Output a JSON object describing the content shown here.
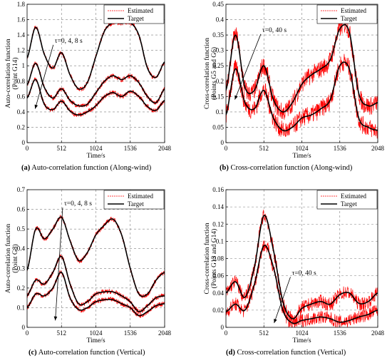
{
  "chart_data": [
    {
      "type": "line",
      "panel": "a",
      "caption": {
        "label": "(a)",
        "text": "Auto-correlation function (Along-wind)"
      },
      "xlabel": "Time/s",
      "ylabel": "Auto-correlation function",
      "ylabel2": "(Point G14)",
      "xlim": [
        0,
        2048
      ],
      "ylim": [
        0,
        1.8
      ],
      "xticks": [
        0,
        512,
        1024,
        1536,
        2048
      ],
      "yticks": [
        0,
        0.2,
        0.4,
        0.6,
        0.8,
        1.0,
        1.2,
        1.4,
        1.6,
        1.8
      ],
      "ytick_labels": [
        "0",
        "0.2",
        "0.4",
        "0.6",
        "0.8",
        "1",
        "1.2",
        "1.4",
        "1.6",
        "1.8"
      ],
      "grid": "dashed",
      "legend": {
        "position": "top-right",
        "entries": [
          "Estimated",
          "Target"
        ]
      },
      "annotation": {
        "text": "τ=0, 4, 8 s",
        "at": [
          390,
          1.3
        ],
        "arrow_to": [
          120,
          0.44
        ]
      },
      "noise": 0.03,
      "series": [
        {
          "name": "τ=0 s",
          "x": [
            0,
            128,
            256,
            384,
            512,
            640,
            768,
            896,
            1024,
            1152,
            1280,
            1408,
            1536,
            1664,
            1792,
            1920,
            2048
          ],
          "y": [
            1.1,
            1.5,
            1.15,
            0.97,
            1.17,
            0.88,
            0.7,
            0.78,
            1.12,
            1.45,
            1.56,
            1.55,
            1.56,
            1.4,
            0.97,
            0.85,
            1.05
          ]
        },
        {
          "name": "τ=4 s",
          "x": [
            0,
            128,
            256,
            384,
            512,
            640,
            768,
            896,
            1024,
            1152,
            1280,
            1408,
            1536,
            1664,
            1792,
            1920,
            2048
          ],
          "y": [
            0.75,
            1.03,
            0.72,
            0.58,
            0.7,
            0.55,
            0.48,
            0.5,
            0.65,
            0.8,
            0.87,
            0.82,
            0.87,
            0.78,
            0.6,
            0.52,
            0.7
          ]
        },
        {
          "name": "τ=8 s",
          "x": [
            0,
            128,
            256,
            384,
            512,
            640,
            768,
            896,
            1024,
            1152,
            1280,
            1408,
            1536,
            1664,
            1792,
            1920,
            2048
          ],
          "y": [
            0.58,
            0.82,
            0.5,
            0.43,
            0.54,
            0.41,
            0.36,
            0.4,
            0.48,
            0.6,
            0.65,
            0.6,
            0.67,
            0.6,
            0.47,
            0.42,
            0.55
          ]
        }
      ]
    },
    {
      "type": "line",
      "panel": "b",
      "caption": {
        "label": "(b)",
        "text": "Cross-correlation function (Along-wind)"
      },
      "xlabel": "Time/s",
      "ylabel": "Cross-correlation function",
      "ylabel2": "(Points G5 and G6)",
      "xlim": [
        0,
        2048
      ],
      "ylim": [
        0,
        0.45
      ],
      "xticks": [
        0,
        512,
        1024,
        1536,
        2048
      ],
      "yticks": [
        0,
        0.05,
        0.1,
        0.15,
        0.2,
        0.25,
        0.3,
        0.35,
        0.4,
        0.45
      ],
      "ytick_labels": [
        "0",
        "0.05",
        "0.1",
        "0.15",
        "0.2",
        "0.25",
        "0.3",
        "0.35",
        "0.4",
        "0.45"
      ],
      "grid": "dashed",
      "legend": {
        "position": "top-right",
        "entries": [
          "Estimated",
          "Target"
        ]
      },
      "annotation": {
        "text": "τ=0, 40 s",
        "at": [
          470,
          0.36
        ],
        "arrow_to": [
          120,
          0.14
        ]
      },
      "noise": 0.03,
      "series": [
        {
          "name": "τ=0 s",
          "x": [
            0,
            128,
            256,
            384,
            512,
            640,
            768,
            896,
            1024,
            1152,
            1280,
            1408,
            1536,
            1664,
            1792,
            1920,
            2048
          ],
          "y": [
            0.17,
            0.35,
            0.18,
            0.17,
            0.25,
            0.14,
            0.1,
            0.13,
            0.19,
            0.22,
            0.24,
            0.27,
            0.37,
            0.36,
            0.16,
            0.12,
            0.13
          ]
        },
        {
          "name": "τ=40 s",
          "x": [
            0,
            128,
            256,
            384,
            512,
            640,
            768,
            896,
            1024,
            1152,
            1280,
            1408,
            1536,
            1664,
            1792,
            1920,
            2048
          ],
          "y": [
            0.09,
            0.24,
            0.13,
            0.11,
            0.17,
            0.08,
            0.04,
            0.05,
            0.08,
            0.09,
            0.11,
            0.14,
            0.25,
            0.24,
            0.08,
            0.05,
            0.04
          ]
        }
      ]
    },
    {
      "type": "line",
      "panel": "c",
      "caption": {
        "label": "(c)",
        "text": "Auto-correlation function (Vertical)"
      },
      "xlabel": "Time/s",
      "ylabel": "Auto-correlation function",
      "ylabel2": "(Point G8)",
      "xlim": [
        0,
        2048
      ],
      "ylim": [
        0,
        0.7
      ],
      "xticks": [
        0,
        512,
        1024,
        1536,
        2048
      ],
      "yticks": [
        0,
        0.1,
        0.2,
        0.3,
        0.4,
        0.5,
        0.6,
        0.7
      ],
      "ytick_labels": [
        "0",
        "0.1",
        "0.2",
        "0.3",
        "0.4",
        "0.5",
        "0.6",
        "0.7"
      ],
      "grid": "dashed",
      "legend": {
        "position": "top-right",
        "entries": [
          "Estimated",
          "Target"
        ]
      },
      "annotation": {
        "text": "τ=0, 4, 8 s",
        "at": [
          530,
          0.62
        ],
        "arrow_to": [
          420,
          0.035
        ]
      },
      "noise": 0.012,
      "series": [
        {
          "name": "τ=0 s",
          "x": [
            0,
            128,
            256,
            384,
            512,
            640,
            768,
            896,
            1024,
            1152,
            1280,
            1408,
            1536,
            1664,
            1792,
            1920,
            2048
          ],
          "y": [
            0.29,
            0.5,
            0.45,
            0.5,
            0.56,
            0.44,
            0.34,
            0.38,
            0.47,
            0.52,
            0.55,
            0.47,
            0.3,
            0.17,
            0.17,
            0.24,
            0.28
          ]
        },
        {
          "name": "τ=4 s",
          "x": [
            0,
            128,
            256,
            384,
            512,
            640,
            768,
            896,
            1024,
            1152,
            1280,
            1408,
            1536,
            1664,
            1792,
            1920,
            2048
          ],
          "y": [
            0.16,
            0.24,
            0.22,
            0.28,
            0.36,
            0.22,
            0.12,
            0.13,
            0.17,
            0.18,
            0.18,
            0.16,
            0.13,
            0.08,
            0.11,
            0.15,
            0.16
          ]
        },
        {
          "name": "τ=8 s",
          "x": [
            0,
            128,
            256,
            384,
            512,
            640,
            768,
            896,
            1024,
            1152,
            1280,
            1408,
            1536,
            1664,
            1792,
            1920,
            2048
          ],
          "y": [
            0.1,
            0.17,
            0.16,
            0.2,
            0.28,
            0.15,
            0.09,
            0.1,
            0.13,
            0.14,
            0.14,
            0.12,
            0.1,
            0.06,
            0.08,
            0.11,
            0.12
          ]
        }
      ]
    },
    {
      "type": "line",
      "panel": "d",
      "caption": {
        "label": "(d)",
        "text": "Cross-correlation function (Vertical)"
      },
      "xlabel": "Time/s",
      "ylabel": "Cross-correlation function",
      "ylabel2": "(Points G13 and G14)",
      "xlim": [
        0,
        2048
      ],
      "ylim": [
        0,
        0.16
      ],
      "xticks": [
        0,
        512,
        1024,
        1536,
        2048
      ],
      "yticks": [
        0,
        0.02,
        0.04,
        0.06,
        0.08,
        0.1,
        0.12,
        0.14,
        0.16
      ],
      "ytick_labels": [
        "0",
        "0.02",
        "0.04",
        "0.06",
        "0.08",
        "0.1",
        "0.12",
        "0.14",
        "0.16"
      ],
      "grid": "dashed",
      "legend": {
        "position": "top-right",
        "entries": [
          "Estimated",
          "Target"
        ]
      },
      "annotation": {
        "text": "τ=0, 40 s",
        "at": [
          870,
          0.061
        ],
        "arrow_to": [
          650,
          0.005
        ]
      },
      "noise": 0.008,
      "series": [
        {
          "name": "τ=0 s",
          "x": [
            0,
            128,
            256,
            384,
            512,
            640,
            768,
            896,
            1024,
            1152,
            1280,
            1408,
            1536,
            1664,
            1792,
            1920,
            2048
          ],
          "y": [
            0.04,
            0.053,
            0.035,
            0.07,
            0.13,
            0.09,
            0.03,
            0.01,
            0.022,
            0.027,
            0.03,
            0.027,
            0.038,
            0.04,
            0.028,
            0.03,
            0.04
          ]
        },
        {
          "name": "τ=40 s",
          "x": [
            0,
            128,
            256,
            384,
            512,
            640,
            768,
            896,
            1024,
            1152,
            1280,
            1408,
            1536,
            1664,
            1792,
            1920,
            2048
          ],
          "y": [
            0.018,
            0.027,
            0.02,
            0.05,
            0.095,
            0.07,
            0.02,
            0.005,
            0.008,
            0.01,
            0.012,
            0.01,
            0.006,
            0.008,
            0.012,
            0.015,
            0.02
          ]
        }
      ]
    }
  ],
  "colors": {
    "estimated": "#ff0000",
    "target": "#000000",
    "grid": "#7f7f7f"
  }
}
